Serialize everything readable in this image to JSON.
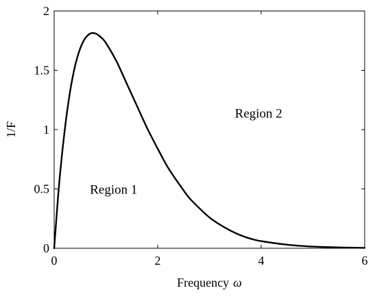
{
  "chart_data": {
    "type": "line",
    "title": "",
    "xlabel": "Frequency",
    "xlabel_symbol": "ω",
    "ylabel": "1/F",
    "xlim": [
      0,
      6
    ],
    "ylim": [
      0,
      2
    ],
    "xticks": [
      "0",
      "2",
      "4",
      "6"
    ],
    "yticks": [
      "0",
      "0.5",
      "1",
      "1.5",
      "2"
    ],
    "grid": false,
    "legend": "none",
    "series": [
      {
        "color": "#000000",
        "x": [
          0,
          0.1,
          0.2,
          0.3,
          0.4,
          0.5,
          0.6,
          0.7,
          0.8,
          0.9,
          1.0,
          1.2,
          1.4,
          1.6,
          1.8,
          2.0,
          2.2,
          2.4,
          2.6,
          2.8,
          3.0,
          3.2,
          3.4,
          3.6,
          3.8,
          4.0,
          4.5,
          5.0,
          5.5,
          6.0
        ],
        "y": [
          0,
          0.56,
          0.98,
          1.3,
          1.53,
          1.68,
          1.77,
          1.81,
          1.81,
          1.78,
          1.73,
          1.58,
          1.39,
          1.2,
          1.01,
          0.84,
          0.68,
          0.55,
          0.43,
          0.34,
          0.26,
          0.2,
          0.15,
          0.11,
          0.08,
          0.06,
          0.03,
          0.014,
          0.007,
          0.003
        ]
      }
    ],
    "annotations": [
      {
        "text": "Region 1",
        "x": 1.15,
        "y": 0.46
      },
      {
        "text": "Region 2",
        "x": 3.95,
        "y": 1.1
      }
    ]
  }
}
